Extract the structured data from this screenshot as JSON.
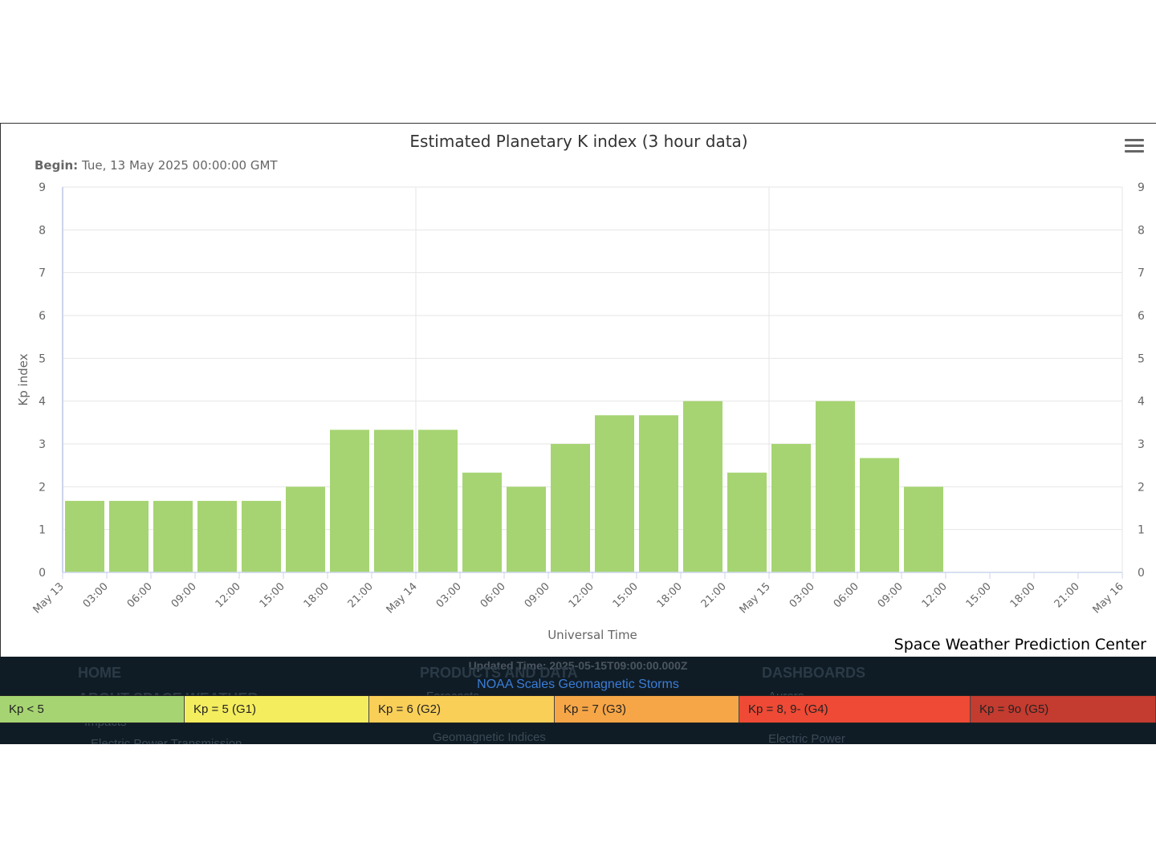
{
  "header_menu_icon": "hamburger-icon",
  "chart_data": {
    "type": "bar",
    "title": "Estimated Planetary K index (3 hour data)",
    "begin_label": "Begin:",
    "begin_value": "Tue, 13 May 2025 00:00:00 GMT",
    "ylabel": "Kp index",
    "xlabel": "Universal Time",
    "ylim": [
      0,
      9
    ],
    "y_ticks": [
      "0",
      "1",
      "2",
      "3",
      "4",
      "5",
      "6",
      "7",
      "8",
      "9"
    ],
    "x_tick_labels": [
      "May 13",
      "03:00",
      "06:00",
      "09:00",
      "12:00",
      "15:00",
      "18:00",
      "21:00",
      "May 14",
      "03:00",
      "06:00",
      "09:00",
      "12:00",
      "15:00",
      "18:00",
      "21:00",
      "May 15",
      "03:00",
      "06:00",
      "09:00",
      "12:00",
      "15:00",
      "18:00",
      "21:00",
      "May 16"
    ],
    "categories": [
      "May 13 00:00",
      "May 13 03:00",
      "May 13 06:00",
      "May 13 09:00",
      "May 13 12:00",
      "May 13 15:00",
      "May 13 18:00",
      "May 13 21:00",
      "May 14 00:00",
      "May 14 03:00",
      "May 14 06:00",
      "May 14 09:00",
      "May 14 12:00",
      "May 14 15:00",
      "May 14 18:00",
      "May 14 21:00",
      "May 15 00:00",
      "May 15 03:00",
      "May 15 06:00",
      "May 15 09:00"
    ],
    "values": [
      1.67,
      1.67,
      1.67,
      1.67,
      1.67,
      2.0,
      3.33,
      3.33,
      3.33,
      2.33,
      2.0,
      3.0,
      3.67,
      3.67,
      4.0,
      2.33,
      3.0,
      4.0,
      2.67,
      2.0
    ],
    "bar_color": "#a6d472",
    "grid": true
  },
  "credit": "Space Weather Prediction Center",
  "footer": {
    "updated": "Updated Time: 2025-05-15T09:00:00.000Z",
    "noaa_scales_link": "NOAA Scales Geomagnetic Storms",
    "col1_title": "HOME",
    "col1_sub1": "ABOUT SPACE WEATHER",
    "col1_sub2": "Impacts",
    "col1_sub3": "Electric Power Transmission",
    "col2_title": "PRODUCTS AND DATA",
    "col2_sub1": "Forecasts",
    "col2_sub2": "Geomagnetic Indices",
    "col3_title": "DASHBOARDS",
    "col3_sub1": "Aurora",
    "col3_sub2": "Electric Power"
  },
  "legend": [
    {
      "label": "Kp < 5",
      "color": "#a6d472"
    },
    {
      "label": "Kp = 5 (G1)",
      "color": "#f4ed5e"
    },
    {
      "label": "Kp = 6 (G2)",
      "color": "#f9cf58"
    },
    {
      "label": "Kp = 7 (G3)",
      "color": "#f6a647"
    },
    {
      "label": "Kp = 8, 9- (G4)",
      "color": "#ee4a35"
    },
    {
      "label": "Kp = 9o (G5)",
      "color": "#c43b2f"
    }
  ]
}
